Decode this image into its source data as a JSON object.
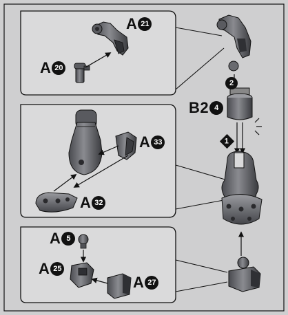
{
  "panel_top": {
    "parts": [
      {
        "prefix": "A",
        "number": "21"
      },
      {
        "prefix": "A",
        "number": "20"
      }
    ]
  },
  "panel_mid": {
    "parts": [
      {
        "prefix": "A",
        "number": "33"
      },
      {
        "prefix": "A",
        "number": "32"
      }
    ]
  },
  "panel_bot": {
    "parts": [
      {
        "prefix": "A",
        "number": "5"
      },
      {
        "prefix": "A",
        "number": "25"
      },
      {
        "prefix": "A",
        "number": "27"
      }
    ]
  },
  "right_column": {
    "step_2": "2",
    "step_1": "1",
    "part": {
      "prefix": "B2",
      "number": "4"
    }
  },
  "colors": {
    "paper": "#cfcfd0",
    "panel_fill": "#d9d9da",
    "part_dark": "#3b3c40",
    "part_mid": "#6d6e73",
    "part_light": "#a9aaae",
    "ink": "#111111"
  }
}
